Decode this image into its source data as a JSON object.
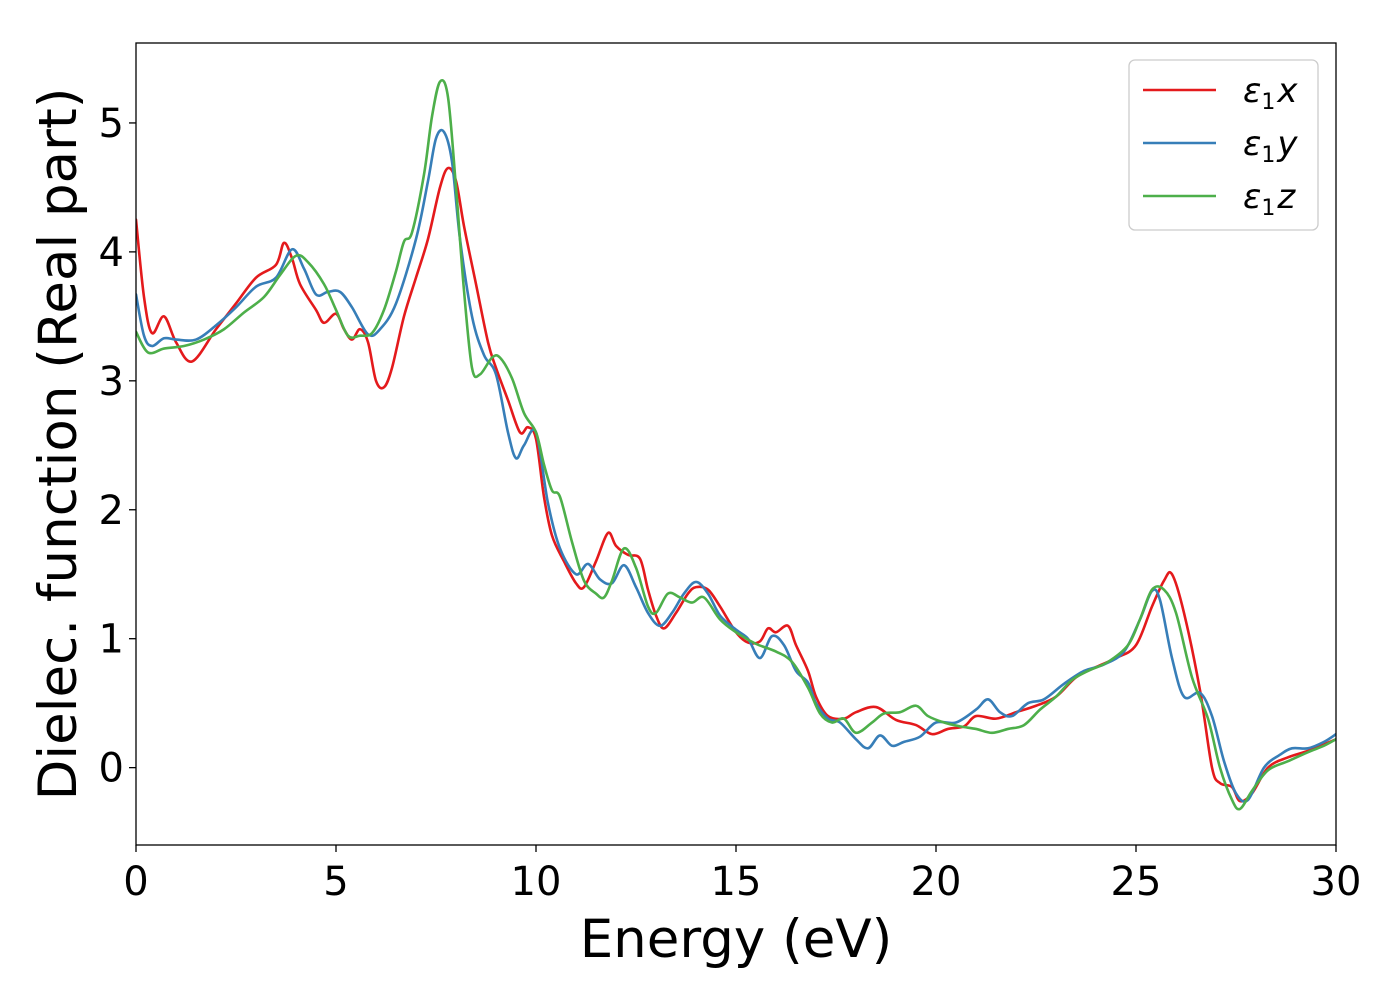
{
  "chart_data": {
    "type": "line",
    "xlabel": "Energy (eV)",
    "ylabel": "Dielec. function (Real part)",
    "xlim": [
      0,
      30
    ],
    "ylim": [
      -0.6,
      5.62
    ],
    "xticks": [
      0,
      5,
      10,
      15,
      20,
      25,
      30
    ],
    "xtick_labels": [
      "0",
      "5",
      "10",
      "15",
      "20",
      "25",
      "30"
    ],
    "yticks": [
      0,
      1,
      2,
      3,
      4,
      5
    ],
    "ytick_labels": [
      "0",
      "1",
      "2",
      "3",
      "4",
      "5"
    ],
    "grid": false,
    "legend_position": "top-right",
    "series": [
      {
        "name": "ε1x",
        "name_base": "ε",
        "name_sub": "1",
        "name_tail": "x",
        "color": "#e41a1c",
        "points": [
          [
            0,
            4.25
          ],
          [
            0.2,
            3.65
          ],
          [
            0.4,
            3.37
          ],
          [
            0.7,
            3.5
          ],
          [
            1.0,
            3.3
          ],
          [
            1.4,
            3.15
          ],
          [
            2.0,
            3.4
          ],
          [
            2.5,
            3.6
          ],
          [
            3.0,
            3.8
          ],
          [
            3.5,
            3.9
          ],
          [
            3.7,
            4.07
          ],
          [
            3.9,
            3.95
          ],
          [
            4.1,
            3.75
          ],
          [
            4.5,
            3.55
          ],
          [
            4.7,
            3.45
          ],
          [
            5.0,
            3.52
          ],
          [
            5.2,
            3.4
          ],
          [
            5.4,
            3.32
          ],
          [
            5.6,
            3.4
          ],
          [
            5.8,
            3.3
          ],
          [
            6.0,
            3.0
          ],
          [
            6.2,
            2.95
          ],
          [
            6.4,
            3.1
          ],
          [
            6.7,
            3.5
          ],
          [
            7.0,
            3.8
          ],
          [
            7.3,
            4.1
          ],
          [
            7.6,
            4.5
          ],
          [
            7.8,
            4.65
          ],
          [
            8.0,
            4.55
          ],
          [
            8.2,
            4.2
          ],
          [
            8.5,
            3.75
          ],
          [
            8.8,
            3.3
          ],
          [
            9.0,
            3.1
          ],
          [
            9.3,
            2.85
          ],
          [
            9.6,
            2.6
          ],
          [
            9.8,
            2.64
          ],
          [
            10.0,
            2.55
          ],
          [
            10.2,
            2.1
          ],
          [
            10.4,
            1.8
          ],
          [
            10.7,
            1.6
          ],
          [
            11.0,
            1.43
          ],
          [
            11.2,
            1.4
          ],
          [
            11.5,
            1.6
          ],
          [
            11.8,
            1.82
          ],
          [
            12.0,
            1.72
          ],
          [
            12.3,
            1.65
          ],
          [
            12.6,
            1.62
          ],
          [
            12.8,
            1.38
          ],
          [
            13.0,
            1.18
          ],
          [
            13.2,
            1.08
          ],
          [
            13.5,
            1.2
          ],
          [
            13.8,
            1.35
          ],
          [
            14.0,
            1.4
          ],
          [
            14.3,
            1.38
          ],
          [
            14.6,
            1.25
          ],
          [
            15.0,
            1.05
          ],
          [
            15.3,
            0.97
          ],
          [
            15.6,
            0.98
          ],
          [
            15.8,
            1.08
          ],
          [
            16.0,
            1.05
          ],
          [
            16.3,
            1.1
          ],
          [
            16.5,
            0.95
          ],
          [
            16.8,
            0.75
          ],
          [
            17.0,
            0.55
          ],
          [
            17.3,
            0.4
          ],
          [
            17.7,
            0.38
          ],
          [
            18.0,
            0.43
          ],
          [
            18.5,
            0.47
          ],
          [
            19.0,
            0.37
          ],
          [
            19.5,
            0.33
          ],
          [
            19.9,
            0.26
          ],
          [
            20.3,
            0.3
          ],
          [
            20.7,
            0.32
          ],
          [
            21.0,
            0.4
          ],
          [
            21.5,
            0.38
          ],
          [
            22.0,
            0.43
          ],
          [
            22.5,
            0.48
          ],
          [
            23.0,
            0.55
          ],
          [
            23.5,
            0.7
          ],
          [
            24.0,
            0.78
          ],
          [
            24.5,
            0.85
          ],
          [
            25.0,
            0.95
          ],
          [
            25.4,
            1.25
          ],
          [
            25.7,
            1.45
          ],
          [
            25.9,
            1.5
          ],
          [
            26.2,
            1.2
          ],
          [
            26.6,
            0.6
          ],
          [
            26.9,
            0.0
          ],
          [
            27.1,
            -0.12
          ],
          [
            27.4,
            -0.15
          ],
          [
            27.6,
            -0.26
          ],
          [
            27.9,
            -0.2
          ],
          [
            28.3,
            0.0
          ],
          [
            28.8,
            0.08
          ],
          [
            29.3,
            0.13
          ],
          [
            29.7,
            0.18
          ],
          [
            30.0,
            0.22
          ]
        ]
      },
      {
        "name": "ε1y",
        "name_base": "ε",
        "name_sub": "1",
        "name_tail": "y",
        "color": "#377eb8",
        "points": [
          [
            0,
            3.67
          ],
          [
            0.2,
            3.35
          ],
          [
            0.4,
            3.27
          ],
          [
            0.7,
            3.33
          ],
          [
            1.0,
            3.32
          ],
          [
            1.5,
            3.32
          ],
          [
            2.0,
            3.43
          ],
          [
            2.5,
            3.57
          ],
          [
            3.0,
            3.73
          ],
          [
            3.5,
            3.8
          ],
          [
            3.9,
            4.02
          ],
          [
            4.2,
            3.87
          ],
          [
            4.5,
            3.67
          ],
          [
            4.8,
            3.69
          ],
          [
            5.1,
            3.69
          ],
          [
            5.4,
            3.57
          ],
          [
            5.8,
            3.36
          ],
          [
            6.1,
            3.4
          ],
          [
            6.5,
            3.6
          ],
          [
            7.0,
            4.1
          ],
          [
            7.3,
            4.55
          ],
          [
            7.5,
            4.88
          ],
          [
            7.7,
            4.93
          ],
          [
            7.9,
            4.7
          ],
          [
            8.1,
            4.1
          ],
          [
            8.4,
            3.5
          ],
          [
            8.7,
            3.2
          ],
          [
            9.0,
            3.05
          ],
          [
            9.3,
            2.6
          ],
          [
            9.5,
            2.4
          ],
          [
            9.7,
            2.5
          ],
          [
            10.0,
            2.6
          ],
          [
            10.3,
            2.05
          ],
          [
            10.6,
            1.7
          ],
          [
            11.0,
            1.5
          ],
          [
            11.3,
            1.58
          ],
          [
            11.6,
            1.46
          ],
          [
            11.9,
            1.43
          ],
          [
            12.2,
            1.57
          ],
          [
            12.5,
            1.4
          ],
          [
            12.8,
            1.2
          ],
          [
            13.1,
            1.1
          ],
          [
            13.4,
            1.2
          ],
          [
            13.7,
            1.35
          ],
          [
            14.0,
            1.44
          ],
          [
            14.3,
            1.35
          ],
          [
            14.6,
            1.18
          ],
          [
            15.0,
            1.07
          ],
          [
            15.3,
            1.0
          ],
          [
            15.6,
            0.85
          ],
          [
            15.9,
            1.02
          ],
          [
            16.2,
            0.95
          ],
          [
            16.5,
            0.75
          ],
          [
            16.8,
            0.66
          ],
          [
            17.0,
            0.5
          ],
          [
            17.3,
            0.38
          ],
          [
            17.6,
            0.35
          ],
          [
            18.0,
            0.22
          ],
          [
            18.3,
            0.15
          ],
          [
            18.6,
            0.25
          ],
          [
            18.9,
            0.17
          ],
          [
            19.2,
            0.2
          ],
          [
            19.6,
            0.24
          ],
          [
            20.0,
            0.35
          ],
          [
            20.5,
            0.35
          ],
          [
            21.0,
            0.45
          ],
          [
            21.3,
            0.53
          ],
          [
            21.6,
            0.43
          ],
          [
            21.9,
            0.4
          ],
          [
            22.3,
            0.5
          ],
          [
            22.7,
            0.53
          ],
          [
            23.2,
            0.65
          ],
          [
            23.7,
            0.75
          ],
          [
            24.2,
            0.8
          ],
          [
            24.7,
            0.9
          ],
          [
            25.1,
            1.15
          ],
          [
            25.4,
            1.37
          ],
          [
            25.6,
            1.3
          ],
          [
            25.9,
            0.85
          ],
          [
            26.2,
            0.55
          ],
          [
            26.6,
            0.58
          ],
          [
            26.9,
            0.4
          ],
          [
            27.2,
            0.05
          ],
          [
            27.5,
            -0.2
          ],
          [
            27.8,
            -0.25
          ],
          [
            28.2,
            0.0
          ],
          [
            28.6,
            0.1
          ],
          [
            28.9,
            0.15
          ],
          [
            29.3,
            0.15
          ],
          [
            29.7,
            0.2
          ],
          [
            30.0,
            0.26
          ]
        ]
      },
      {
        "name": "ε1z",
        "name_base": "ε",
        "name_sub": "1",
        "name_tail": "z",
        "color": "#4daf4a",
        "points": [
          [
            0,
            3.38
          ],
          [
            0.3,
            3.22
          ],
          [
            0.7,
            3.25
          ],
          [
            1.2,
            3.27
          ],
          [
            1.7,
            3.32
          ],
          [
            2.2,
            3.4
          ],
          [
            2.7,
            3.53
          ],
          [
            3.2,
            3.65
          ],
          [
            3.6,
            3.82
          ],
          [
            4.0,
            3.97
          ],
          [
            4.3,
            3.92
          ],
          [
            4.7,
            3.75
          ],
          [
            5.0,
            3.55
          ],
          [
            5.3,
            3.35
          ],
          [
            5.6,
            3.35
          ],
          [
            5.9,
            3.37
          ],
          [
            6.2,
            3.55
          ],
          [
            6.5,
            3.85
          ],
          [
            6.7,
            4.08
          ],
          [
            6.9,
            4.15
          ],
          [
            7.2,
            4.6
          ],
          [
            7.4,
            5.05
          ],
          [
            7.6,
            5.32
          ],
          [
            7.8,
            5.2
          ],
          [
            8.0,
            4.5
          ],
          [
            8.2,
            3.7
          ],
          [
            8.4,
            3.1
          ],
          [
            8.6,
            3.05
          ],
          [
            8.9,
            3.18
          ],
          [
            9.1,
            3.18
          ],
          [
            9.4,
            3.02
          ],
          [
            9.7,
            2.75
          ],
          [
            10.0,
            2.6
          ],
          [
            10.2,
            2.35
          ],
          [
            10.4,
            2.15
          ],
          [
            10.6,
            2.1
          ],
          [
            10.9,
            1.75
          ],
          [
            11.2,
            1.45
          ],
          [
            11.5,
            1.35
          ],
          [
            11.7,
            1.32
          ],
          [
            11.9,
            1.45
          ],
          [
            12.2,
            1.7
          ],
          [
            12.5,
            1.55
          ],
          [
            12.8,
            1.25
          ],
          [
            13.0,
            1.2
          ],
          [
            13.3,
            1.35
          ],
          [
            13.6,
            1.32
          ],
          [
            13.9,
            1.28
          ],
          [
            14.2,
            1.32
          ],
          [
            14.6,
            1.15
          ],
          [
            15.0,
            1.05
          ],
          [
            15.5,
            0.96
          ],
          [
            16.0,
            0.9
          ],
          [
            16.4,
            0.82
          ],
          [
            16.8,
            0.62
          ],
          [
            17.1,
            0.42
          ],
          [
            17.4,
            0.35
          ],
          [
            17.7,
            0.38
          ],
          [
            18.0,
            0.27
          ],
          [
            18.4,
            0.35
          ],
          [
            18.7,
            0.42
          ],
          [
            19.1,
            0.43
          ],
          [
            19.5,
            0.48
          ],
          [
            19.8,
            0.4
          ],
          [
            20.2,
            0.35
          ],
          [
            20.6,
            0.32
          ],
          [
            21.0,
            0.3
          ],
          [
            21.4,
            0.27
          ],
          [
            21.8,
            0.3
          ],
          [
            22.2,
            0.33
          ],
          [
            22.6,
            0.45
          ],
          [
            23.0,
            0.55
          ],
          [
            23.4,
            0.68
          ],
          [
            23.8,
            0.75
          ],
          [
            24.3,
            0.82
          ],
          [
            24.8,
            0.95
          ],
          [
            25.1,
            1.15
          ],
          [
            25.4,
            1.38
          ],
          [
            25.7,
            1.38
          ],
          [
            26.0,
            1.2
          ],
          [
            26.4,
            0.7
          ],
          [
            26.8,
            0.38
          ],
          [
            27.1,
            0.0
          ],
          [
            27.4,
            -0.25
          ],
          [
            27.6,
            -0.32
          ],
          [
            27.9,
            -0.18
          ],
          [
            28.3,
            -0.02
          ],
          [
            28.8,
            0.05
          ],
          [
            29.3,
            0.12
          ],
          [
            29.7,
            0.17
          ],
          [
            30.0,
            0.22
          ]
        ]
      }
    ]
  }
}
